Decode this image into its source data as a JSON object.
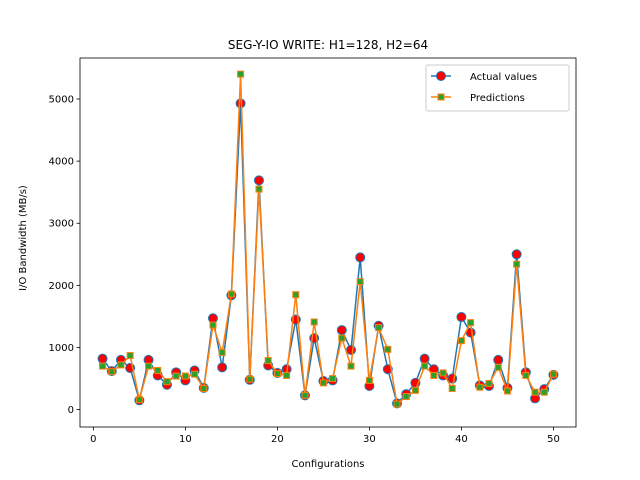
{
  "chart_data": {
    "type": "line",
    "title": "SEG-Y-IO WRITE: H1=128, H2=64",
    "xlabel": "Configurations",
    "ylabel": "I/O Bandwidth (MB/s)",
    "xlim": [
      -1.45,
      52.45
    ],
    "ylim": [
      -280,
      5660
    ],
    "xticks": [
      0,
      10,
      20,
      30,
      40,
      50
    ],
    "yticks": [
      0,
      1000,
      2000,
      3000,
      4000,
      5000
    ],
    "grid": false,
    "legend_position": "upper-right",
    "x": [
      1,
      2,
      3,
      4,
      5,
      6,
      7,
      8,
      9,
      10,
      11,
      12,
      13,
      14,
      15,
      16,
      17,
      18,
      19,
      20,
      21,
      22,
      23,
      24,
      25,
      26,
      27,
      28,
      29,
      30,
      31,
      32,
      33,
      34,
      35,
      36,
      37,
      38,
      39,
      40,
      41,
      42,
      43,
      44,
      45,
      46,
      47,
      48,
      49,
      50
    ],
    "series": [
      {
        "name": "Actual values",
        "color": "#1f77b4",
        "marker": "circle",
        "marker_face": "#ff0000",
        "values": [
          820,
          620,
          800,
          670,
          150,
          800,
          550,
          400,
          600,
          470,
          630,
          350,
          1470,
          680,
          1840,
          4930,
          480,
          3690,
          710,
          590,
          650,
          1450,
          230,
          1150,
          460,
          470,
          1280,
          960,
          2450,
          380,
          1350,
          650,
          100,
          250,
          430,
          820,
          650,
          550,
          500,
          1490,
          1240,
          390,
          380,
          800,
          350,
          2500,
          600,
          180,
          330,
          560
        ]
      },
      {
        "name": "Predictions",
        "color": "#ff7f0e",
        "marker": "square",
        "marker_face": "#2ca02c",
        "values": [
          700,
          610,
          720,
          870,
          160,
          700,
          630,
          450,
          540,
          540,
          570,
          340,
          1360,
          920,
          1860,
          5400,
          490,
          3550,
          790,
          580,
          550,
          1850,
          230,
          1410,
          430,
          500,
          1150,
          700,
          2060,
          470,
          1320,
          970,
          90,
          210,
          310,
          700,
          550,
          590,
          340,
          1110,
          1400,
          360,
          420,
          680,
          300,
          2340,
          550,
          280,
          280,
          570
        ]
      }
    ]
  }
}
